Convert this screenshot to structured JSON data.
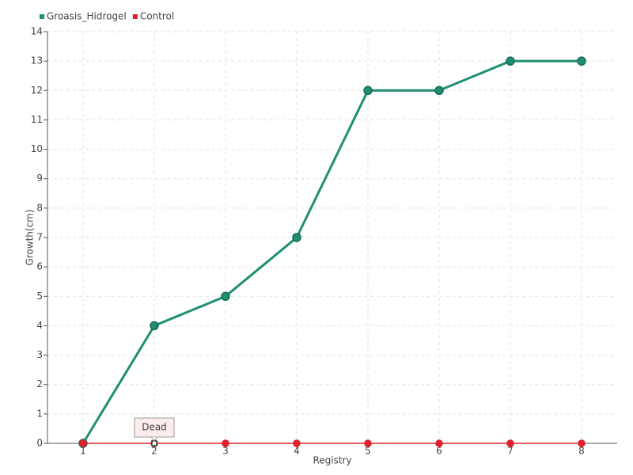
{
  "chart_data": {
    "type": "line",
    "x": [
      1,
      2,
      3,
      4,
      5,
      6,
      7,
      8
    ],
    "xlim": [
      0.5,
      8.5
    ],
    "xticks": [
      1,
      2,
      3,
      4,
      5,
      6,
      7,
      8
    ],
    "ylim": [
      0,
      14
    ],
    "yticks": [
      0,
      1,
      2,
      3,
      4,
      5,
      6,
      7,
      8,
      9,
      10,
      11,
      12,
      13,
      14
    ],
    "x_label": "Registry",
    "y_label": "Growth(cm)",
    "grid": true,
    "legend": "top-left",
    "series": [
      {
        "name": "Groasis_Hidrogel",
        "color": "#1f8f73",
        "values": [
          0,
          4,
          5,
          7,
          12,
          12,
          13,
          13
        ]
      },
      {
        "name": "Control",
        "color": "#e0202a",
        "values": [
          0,
          0,
          0,
          0,
          0,
          0,
          0,
          0
        ]
      }
    ],
    "annotations": [
      {
        "text": "Dead",
        "x": 2,
        "y": 0
      }
    ]
  }
}
